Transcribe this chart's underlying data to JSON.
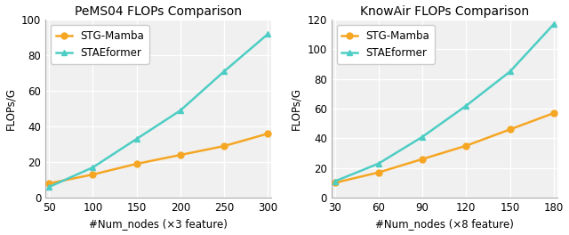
{
  "left": {
    "title": "PeMS04 FLOPs Comparison",
    "xlabel": "#Num_nodes (×3 feature)",
    "ylabel": "FLOPs/G",
    "x": [
      50,
      100,
      150,
      200,
      250,
      300
    ],
    "stg_mamba": [
      8,
      13,
      19,
      24,
      29,
      36
    ],
    "staeformer": [
      6,
      17,
      33,
      49,
      71,
      92
    ],
    "ylim": [
      0,
      100
    ],
    "yticks": [
      0,
      20,
      40,
      60,
      80,
      100
    ]
  },
  "right": {
    "title": "KnowAir FLOPs Comparison",
    "xlabel": "#Num_nodes (×8 feature)",
    "ylabel": "FLOPs/G",
    "x": [
      30,
      60,
      90,
      120,
      150,
      180
    ],
    "stg_mamba": [
      10,
      17,
      26,
      35,
      46,
      57
    ],
    "staeformer": [
      11,
      23,
      41,
      62,
      85,
      117
    ],
    "ylim": [
      0,
      120
    ],
    "yticks": [
      0,
      20,
      40,
      60,
      80,
      100,
      120
    ]
  },
  "color_stg_mamba": "#f5a623",
  "color_staeformer": "#4ecdc4",
  "label_stg_mamba": "STG-Mamba",
  "label_staeformer": "STAEformer",
  "marker_stg_mamba": "o",
  "marker_staeformer": "^",
  "linewidth": 1.8,
  "markersize": 5,
  "fontsize_title": 10,
  "fontsize_label": 8.5,
  "fontsize_tick": 8.5,
  "fontsize_legend": 8.5,
  "bg_color": "#f0f0f0"
}
